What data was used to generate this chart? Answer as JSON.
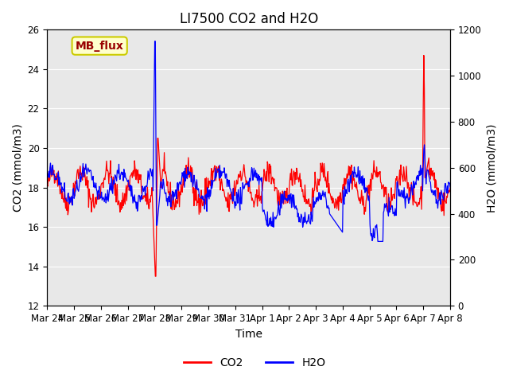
{
  "title": "LI7500 CO2 and H2O",
  "xlabel": "Time",
  "ylabel_left": "CO2 (mmol/m3)",
  "ylabel_right": "H2O (mmol/m3)",
  "ylim_left": [
    12,
    26
  ],
  "ylim_right": [
    0,
    1200
  ],
  "yticks_left": [
    12,
    14,
    16,
    18,
    20,
    22,
    24,
    26
  ],
  "yticks_right": [
    0,
    200,
    400,
    600,
    800,
    1000,
    1200
  ],
  "x_tick_labels": [
    "Mar 24",
    "Mar 25",
    "Mar 26",
    "Mar 27",
    "Mar 28",
    "Mar 29",
    "Mar 30",
    "Mar 31",
    "Apr 1",
    "Apr 2",
    "Apr 3",
    "Apr 4",
    "Apr 5",
    "Apr 6",
    "Apr 7",
    "Apr 8"
  ],
  "co2_color": "#ff0000",
  "h2o_color": "#0000ff",
  "bg_color": "#e8e8e8",
  "plot_bg_color": "#e8e8e8",
  "annotation_text": "MB_flux",
  "annotation_bg": "#ffffcc",
  "annotation_border": "#cccc00",
  "annotation_text_color": "#990000",
  "legend_co2": "CO2",
  "legend_h2o": "H2O",
  "title_fontsize": 12,
  "label_fontsize": 10,
  "tick_fontsize": 8.5
}
